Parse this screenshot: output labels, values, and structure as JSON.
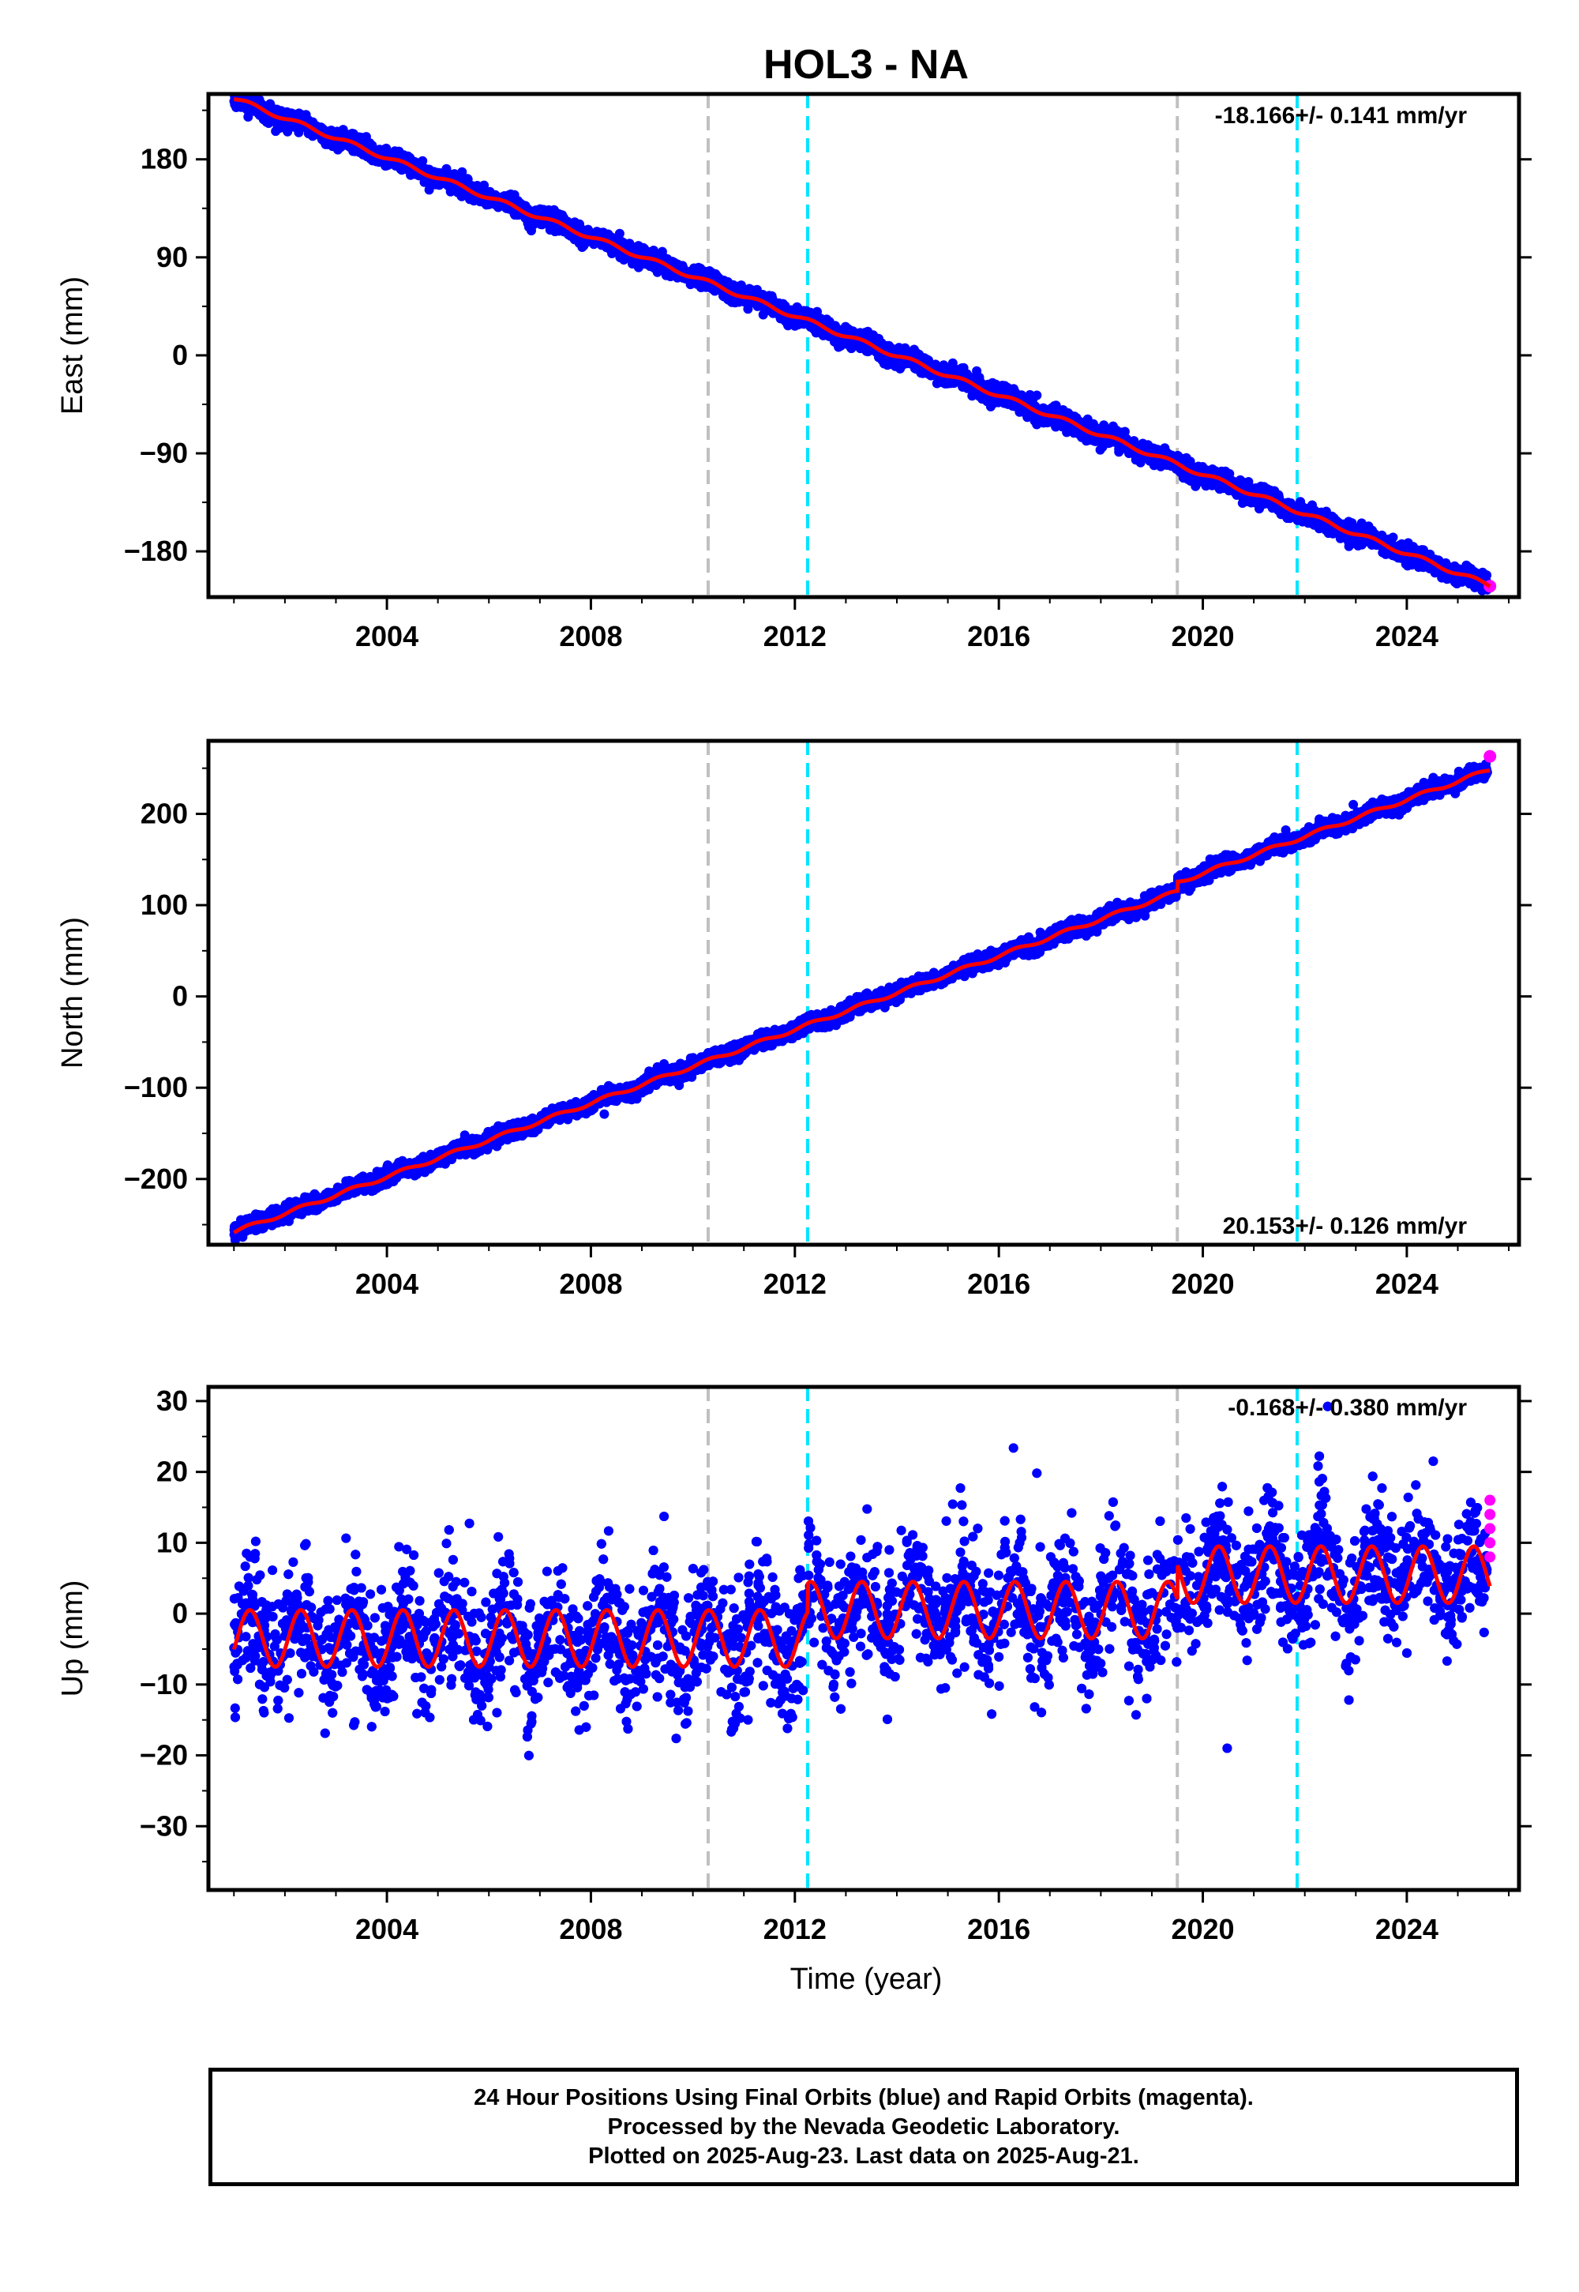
{
  "title": "HOL3 - NA",
  "xlabel": "Time (year)",
  "footer": {
    "line1": "24 Hour Positions Using Final Orbits (blue) and Rapid Orbits (magenta).",
    "line2": "Processed by the Nevada Geodetic Laboratory.",
    "line3": "Plotted on 2025-Aug-23. Last data on 2025-Aug-21."
  },
  "colors": {
    "final_orbit_points": "#0000ff",
    "rapid_orbit_points": "#ff00ff",
    "model_fit": "#ff0000",
    "equipment_change_line": "#c0c0c0",
    "earthquake_line": "#00e5ff"
  },
  "chart_data": [
    {
      "type": "scatter",
      "panel": "east",
      "ylabel": "East (mm)",
      "rate_label": "-18.166+/- 0.141 mm/yr",
      "xlim": [
        2000.5,
        2026.2
      ],
      "ylim": [
        -222,
        240
      ],
      "x_ticks": [
        2004,
        2008,
        2012,
        2016,
        2020,
        2024
      ],
      "y_ticks": [
        -180,
        -90,
        0,
        90,
        180
      ],
      "grid": false,
      "trend": {
        "x_start": 2001.0,
        "y_start": 236,
        "slope_mm_per_yr": -18.166,
        "x_end": 2025.63
      },
      "scatter_mm": 4,
      "step_offsets": [
        {
          "x": 2019.5,
          "dy": 0
        }
      ],
      "seasonal_amplitude_mm": 2,
      "rapid_orbit_final_value": -212,
      "vertical_lines": {
        "equipment_change": [
          2010.3,
          2019.5
        ],
        "earthquake": [
          2012.25,
          2021.85
        ]
      }
    },
    {
      "type": "scatter",
      "panel": "north",
      "ylabel": "North (mm)",
      "rate_label": "20.153+/- 0.126 mm/yr",
      "xlim": [
        2000.5,
        2026.2
      ],
      "ylim": [
        -272,
        280
      ],
      "x_ticks": [
        2004,
        2008,
        2012,
        2016,
        2020,
        2024
      ],
      "y_ticks": [
        -200,
        -100,
        0,
        100,
        200
      ],
      "grid": false,
      "trend": {
        "x_start": 2001.0,
        "y_start": -258,
        "slope_mm_per_yr": 20.153,
        "x_end": 2025.63
      },
      "scatter_mm": 4,
      "step_offsets": [
        {
          "x": 2019.5,
          "dy": 10
        }
      ],
      "seasonal_amplitude_mm": 2,
      "rapid_orbit_final_value": 263,
      "vertical_lines": {
        "equipment_change": [
          2010.3,
          2019.5
        ],
        "earthquake": [
          2012.25,
          2021.85
        ]
      }
    },
    {
      "type": "scatter",
      "panel": "up",
      "ylabel": "Up (mm)",
      "rate_label": "-0.168+/- 0.380 mm/yr",
      "xlim": [
        2000.5,
        2026.2
      ],
      "ylim": [
        -39,
        32
      ],
      "x_ticks": [
        2004,
        2008,
        2012,
        2016,
        2020,
        2024
      ],
      "y_ticks": [
        -30,
        -20,
        -10,
        0,
        10,
        20,
        30
      ],
      "grid": false,
      "segments": [
        {
          "x_start": 2001.0,
          "x_end": 2012.25,
          "mean_mm": -3.5
        },
        {
          "x_start": 2012.25,
          "x_end": 2019.5,
          "mean_mm": 0.5
        },
        {
          "x_start": 2019.5,
          "x_end": 2025.63,
          "mean_mm": 5.5
        }
      ],
      "seasonal_amplitude_mm": 4,
      "scatter_mm": 4.5,
      "rapid_orbit_values": [
        8,
        10,
        12,
        14,
        16
      ],
      "vertical_lines": {
        "equipment_change": [
          2010.3,
          2019.5
        ],
        "earthquake": [
          2012.25,
          2021.85
        ]
      }
    }
  ]
}
